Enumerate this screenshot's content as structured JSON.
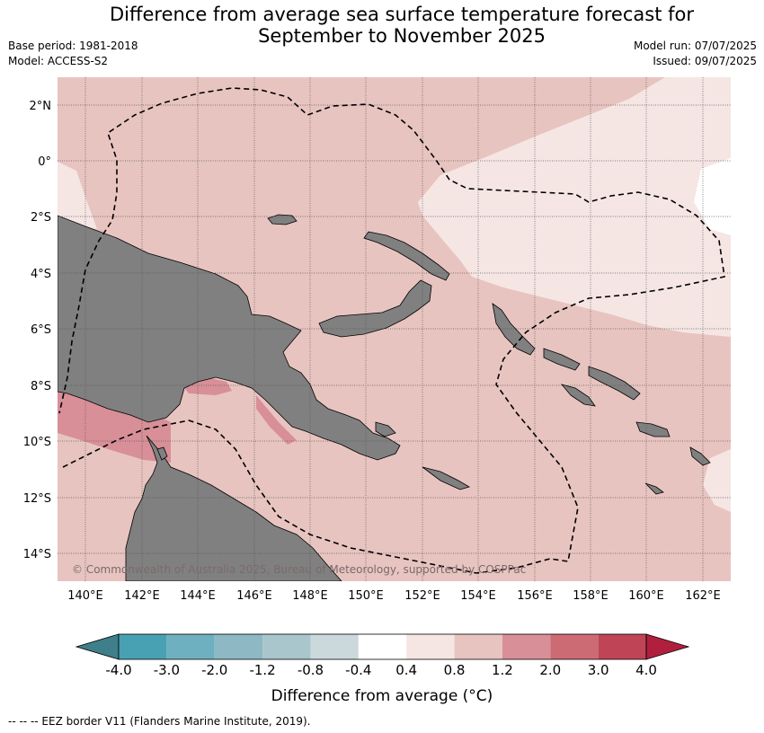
{
  "title_line1": "Difference from average sea surface temperature forecast for",
  "title_line2": "September to November 2025",
  "meta_left": [
    "Base period: 1981-2018",
    "Model: ACCESS-S2"
  ],
  "meta_right": [
    "Model run: 07/07/2025",
    "Issued: 09/07/2025"
  ],
  "copyright": "© Commonwealth of Australia 2025, Bureau of Meteorology, supported by COSPPac",
  "lat_labels": [
    "2°N",
    "0°",
    "2°S",
    "4°S",
    "6°S",
    "8°S",
    "10°S",
    "12°S",
    "14°S"
  ],
  "lon_labels": [
    "140°E",
    "142°E",
    "144°E",
    "146°E",
    "148°E",
    "150°E",
    "152°E",
    "154°E",
    "156°E",
    "158°E",
    "160°E",
    "162°E"
  ],
  "colorbar": {
    "label": "Difference from average (°C)",
    "ticks": [
      "-4.0",
      "-3.0",
      "-2.0",
      "-1.2",
      "-0.8",
      "-0.4",
      "0.4",
      "0.8",
      "1.2",
      "2.0",
      "3.0",
      "4.0"
    ],
    "colors": [
      "#3f7f8b",
      "#48a1b3",
      "#6eb0c0",
      "#8db8c4",
      "#a8c6cc",
      "#cbd9dc",
      "#ffffff",
      "#f5e6e4",
      "#e8c4c0",
      "#d88f98",
      "#cd6b75",
      "#bf4456",
      "#b0203e"
    ]
  },
  "map_colors": {
    "land": "#808080",
    "warm_0_4_0_8": "#f5e6e4",
    "warm_0_8_1_2": "#e8c4c0",
    "warm_1_2_2_0": "#d88f98",
    "neutral": "#ffffff"
  },
  "footer": "--  --  -- EEZ border V11 (Flanders Marine Institute, 2019)."
}
